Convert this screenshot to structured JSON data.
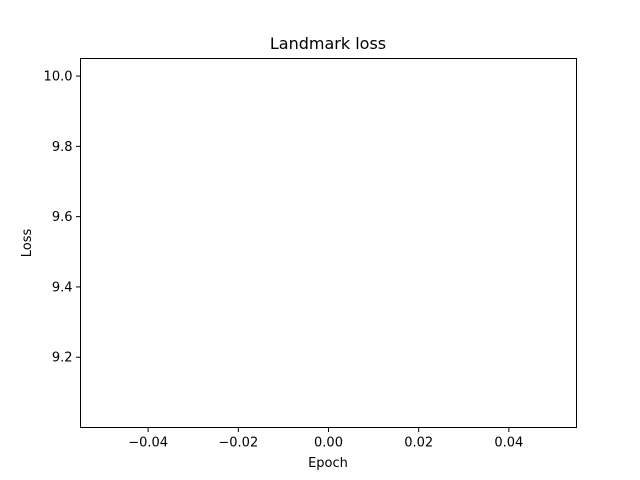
{
  "chart_data": {
    "type": "line",
    "title": "Landmark loss",
    "xlabel": "Epoch",
    "ylabel": "Loss",
    "xlim": [
      -0.055,
      0.055
    ],
    "ylim": [
      9.0,
      10.05
    ],
    "xticks": [
      -0.04,
      -0.02,
      0.0,
      0.02,
      0.04
    ],
    "xtick_labels": [
      "−0.04",
      "−0.02",
      "0.00",
      "0.02",
      "0.04"
    ],
    "yticks": [
      9.2,
      9.4,
      9.6,
      9.8,
      10.0
    ],
    "ytick_labels": [
      "9.2",
      "9.4",
      "9.6",
      "9.8",
      "10.0"
    ],
    "grid": false,
    "series": [
      {
        "x": [],
        "y": [],
        "color": "#1f77b4"
      }
    ]
  }
}
